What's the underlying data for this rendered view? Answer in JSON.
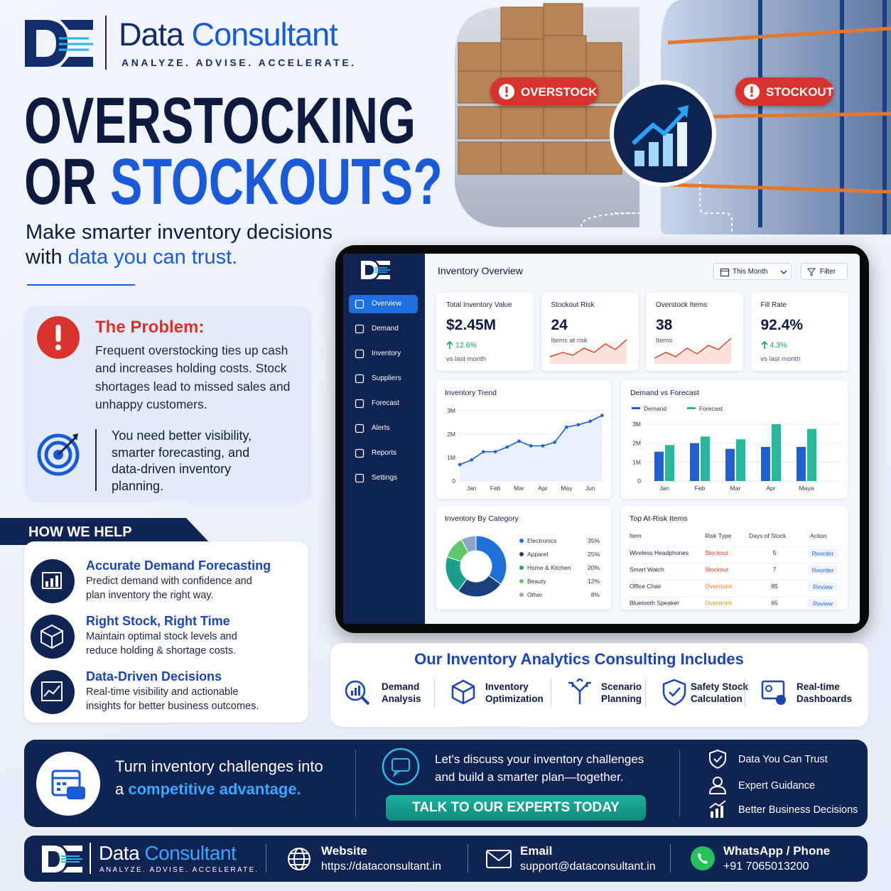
{
  "brand": {
    "name_part1": "Data",
    "name_part2": "Consultant",
    "tagline": "ANALYZE. ADVISE. ACCELERATE."
  },
  "hero": {
    "line1": "OVERSTOCKING",
    "line2a": "OR",
    "line2b": "STOCKOUTS?",
    "sub1": "Make smarter inventory decisions",
    "sub2a": "with",
    "sub2b": "data you can trust.",
    "badges": [
      "OVERSTOCK",
      "STOCKOUT"
    ]
  },
  "problem": {
    "title": "The Problem:",
    "text": "Frequent overstocking ties up cash and increases holding costs. Stock shortages lead to missed sales and unhappy customers.",
    "need": "You need better visibility, smarter forecasting, and data-driven inventory planning."
  },
  "help": {
    "title": "HOW WE HELP",
    "items": [
      {
        "title": "Accurate Demand Forecasting",
        "text": "Predict demand with confidence and plan inventory the right way."
      },
      {
        "title": "Right Stock, Right Time",
        "text": "Maintain optimal stock levels and reduce holding & shortage costs."
      },
      {
        "title": "Data-Driven Decisions",
        "text": "Real-time visibility and actionable insights for better business outcomes."
      }
    ]
  },
  "dashboard": {
    "title": "Inventory Overview",
    "period": "This Month",
    "filter": "Filter",
    "nav": [
      "Overview",
      "Demand",
      "Inventory",
      "Suppliers",
      "Forecast",
      "Alerts",
      "Reports",
      "Settings"
    ],
    "kpis": [
      {
        "label": "Total Inventory Value",
        "value": "$2.45M",
        "change": "12.6%",
        "note": "vs last month"
      },
      {
        "label": "Stockout Risk",
        "value": "24",
        "note": "Items at risk"
      },
      {
        "label": "Overstock Items",
        "value": "38",
        "note": "Items"
      },
      {
        "label": "Fill Rate",
        "value": "92.4%",
        "change": "4.3%",
        "note": "vs last month"
      }
    ],
    "table": {
      "title": "Top At-Risk Items",
      "columns": [
        "Item",
        "Risk Type",
        "Days of Stock",
        "Action"
      ],
      "rows": [
        [
          "Wireless Headphones",
          "Stockout",
          5,
          "Reorder"
        ],
        [
          "Smart Watch",
          "Stockout",
          7,
          "Reorder"
        ],
        [
          "Office Chair",
          "Overstock",
          85,
          "Review"
        ],
        [
          "Bluetooth Speaker",
          "Overstock",
          65,
          "Review"
        ]
      ]
    }
  },
  "chart_data": [
    {
      "type": "line",
      "title": "Inventory Trend",
      "categories": [
        null,
        "Jan",
        null,
        "Feb",
        null,
        "Mar",
        null,
        "Apr",
        null,
        "May",
        null,
        "Jun",
        null
      ],
      "values": [
        0.7,
        0.9,
        1.25,
        1.25,
        1.45,
        1.7,
        1.5,
        1.5,
        1.65,
        2.3,
        2.4,
        2.55,
        2.8
      ],
      "color": "#1f5fd0",
      "ylim": [
        0,
        3.2
      ],
      "yticks": [
        0,
        {
          "value": 1,
          "label": "1M"
        },
        {
          "value": 2,
          "label": "2M"
        },
        {
          "value": 3,
          "label": "3M"
        }
      ],
      "grid": true
    },
    {
      "type": "bar",
      "title": "Demand vs Forecast",
      "categories": [
        "Jan",
        "Feb",
        "Mar",
        "Apr",
        "Maya"
      ],
      "series": [
        {
          "name": "Demand",
          "color": "#1f5fd0",
          "values": [
            1.55,
            2.0,
            1.7,
            1.8,
            1.8
          ]
        },
        {
          "name": "Forecast",
          "color": "#2bb59a",
          "values": [
            1.9,
            2.35,
            2.2,
            3.0,
            2.75
          ]
        }
      ],
      "ylim": [
        0,
        3.2
      ],
      "yticks": [
        0,
        {
          "value": 1,
          "label": "1M"
        },
        {
          "value": 2,
          "label": "2M"
        },
        {
          "value": 3,
          "label": "3M"
        }
      ],
      "grid": true
    },
    {
      "type": "pie",
      "title": "Inventory By Category",
      "categories": [
        "Electronics",
        "Apparel",
        "Home & Kitchen",
        "Beauty",
        "Other"
      ],
      "values": [
        35,
        25,
        20,
        12,
        8
      ],
      "value_labels": [
        "35%",
        "25%",
        "20%",
        "12%",
        "8%"
      ],
      "colors": [
        "#1f6fd8",
        "#1b3f7a",
        "#1aa08a",
        "#5cc86a",
        "#8fa3c7"
      ]
    }
  ],
  "includes": {
    "title": "Our Inventory Analytics Consulting Includes",
    "items": [
      "Demand Analysis",
      "Inventory Optimization",
      "Scenario Planning",
      "Safety Stock Calculation",
      "Real-time Dashboards"
    ]
  },
  "cta": {
    "headline_1": "Turn inventory challenges into",
    "headline_2a": "a",
    "headline_2b": "competitive advantage.",
    "message": "Let's discuss your inventory challenges and build a smarter plan—together.",
    "button": "TALK TO OUR EXPERTS TODAY",
    "trust": [
      "Data You Can Trust",
      "Expert Guidance",
      "Better Business Decisions"
    ]
  },
  "footer": {
    "website_label": "Website",
    "website": "https://dataconsultant.in",
    "email_label": "Email",
    "email": "support@dataconsultant.in",
    "phone_label": "WhatsApp / Phone",
    "phone": "+91 7065013200"
  }
}
